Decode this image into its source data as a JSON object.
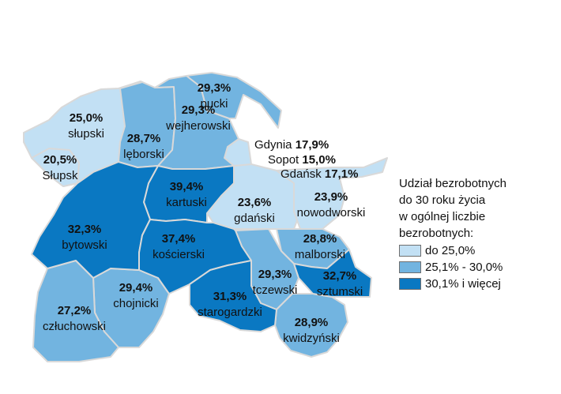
{
  "colors": {
    "light": "#c2e0f4",
    "medium": "#72b4e0",
    "dark": "#0a78c2"
  },
  "regions": [
    {
      "id": "slupski",
      "pct": "25,0%",
      "name": "słupski",
      "cls": "light"
    },
    {
      "id": "slupsk",
      "pct": "20,5%",
      "name": "Słupsk",
      "cls": "light"
    },
    {
      "id": "leborski",
      "pct": "28,7%",
      "name": "lęborski",
      "cls": "medium"
    },
    {
      "id": "wejherowski",
      "pct": "29,3%",
      "name": "wejherowski",
      "cls": "medium"
    },
    {
      "id": "pucki",
      "pct": "29,3%",
      "name": "pucki",
      "cls": "medium"
    },
    {
      "id": "kartuski",
      "pct": "39,4%",
      "name": "kartuski",
      "cls": "dark"
    },
    {
      "id": "gdanski",
      "pct": "23,6%",
      "name": "gdański",
      "cls": "light"
    },
    {
      "id": "nowodworski",
      "pct": "23,9%",
      "name": "nowodworski",
      "cls": "light"
    },
    {
      "id": "bytowski",
      "pct": "32,3%",
      "name": "bytowski",
      "cls": "dark"
    },
    {
      "id": "koscierski",
      "pct": "37,4%",
      "name": "kościerski",
      "cls": "dark"
    },
    {
      "id": "malborski",
      "pct": "28,8%",
      "name": "malborski",
      "cls": "medium"
    },
    {
      "id": "tczewski",
      "pct": "29,3%",
      "name": "tczewski",
      "cls": "medium"
    },
    {
      "id": "sztumski",
      "pct": "32,7%",
      "name": "sztumski",
      "cls": "dark"
    },
    {
      "id": "starogardzki",
      "pct": "31,3%",
      "name": "starogardzki",
      "cls": "dark"
    },
    {
      "id": "chojnicki",
      "pct": "29,4%",
      "name": "chojnicki",
      "cls": "medium"
    },
    {
      "id": "czluchowski",
      "pct": "27,2%",
      "name": "człuchowski",
      "cls": "medium"
    },
    {
      "id": "kwidzynski",
      "pct": "28,9%",
      "name": "kwidzyński",
      "cls": "medium"
    }
  ],
  "cities": [
    {
      "name": "Gdynia",
      "pct": "17,9%"
    },
    {
      "name": "Sopot",
      "pct": "15,0%"
    },
    {
      "name": "Gdańsk",
      "pct": "17,1%"
    }
  ],
  "legend": {
    "title_lines": [
      "Udział bezrobotnych",
      "do 30 roku życia",
      "w ogólnej liczbie",
      "bezrobotnych:"
    ],
    "items": [
      {
        "label": "do 25,0%",
        "cls": "light"
      },
      {
        "label": "25,1% - 30,0%",
        "cls": "medium"
      },
      {
        "label": "30,1% i więcej",
        "cls": "dark"
      }
    ]
  }
}
